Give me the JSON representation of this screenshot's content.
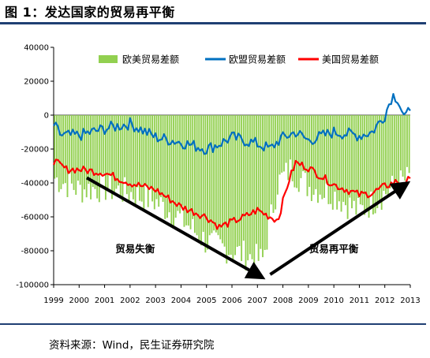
{
  "header": {
    "title": "图 1：发达国家的贸易再平衡"
  },
  "footer": {
    "source": "资料来源：Wind，民生证券研究院"
  },
  "chart_data": {
    "type": "bar+line",
    "title": "",
    "xlabel": "",
    "ylabel": "",
    "ylim": [
      -100000,
      40000
    ],
    "yticks": [
      40000,
      20000,
      0,
      -20000,
      -40000,
      -60000,
      -80000,
      -100000
    ],
    "xticks": [
      "1999",
      "2000",
      "2001",
      "2002",
      "2003",
      "2004",
      "2005",
      "2006",
      "2007",
      "2008",
      "2009",
      "2010",
      "2011",
      "2012",
      "2013"
    ],
    "xrange": [
      1999.0,
      2013.0
    ],
    "legend_position": "top",
    "series": [
      {
        "name": "欧美贸易差额",
        "type": "bar",
        "color": "#92d050",
        "anchors": [
          [
            1999.0,
            -37000
          ],
          [
            2000.0,
            -44000
          ],
          [
            2001.0,
            -43000
          ],
          [
            2002.0,
            -46000
          ],
          [
            2003.0,
            -51000
          ],
          [
            2004.0,
            -61000
          ],
          [
            2005.0,
            -75000
          ],
          [
            2006.0,
            -80000
          ],
          [
            2006.8,
            -84000
          ],
          [
            2007.2,
            -86000
          ],
          [
            2007.8,
            -40000
          ],
          [
            2008.3,
            -32000
          ],
          [
            2009.0,
            -42000
          ],
          [
            2010.0,
            -47000
          ],
          [
            2011.0,
            -57000
          ],
          [
            2012.0,
            -46000
          ],
          [
            2012.6,
            -40000
          ],
          [
            2013.0,
            -37000
          ]
        ]
      },
      {
        "name": "欧盟贸易差额",
        "type": "line",
        "color": "#0070c0",
        "anchors": [
          [
            1999.0,
            -6000
          ],
          [
            1999.3,
            -12000
          ],
          [
            2000.0,
            -12000
          ],
          [
            2001.0,
            -8000
          ],
          [
            2002.0,
            -5000
          ],
          [
            2003.0,
            -13000
          ],
          [
            2004.0,
            -16000
          ],
          [
            2005.0,
            -20000
          ],
          [
            2005.5,
            -17000
          ],
          [
            2006.0,
            -13000
          ],
          [
            2007.0,
            -17000
          ],
          [
            2007.5,
            -20000
          ],
          [
            2007.9,
            -14000
          ],
          [
            2008.5,
            -10000
          ],
          [
            2009.0,
            -15000
          ],
          [
            2010.0,
            -10000
          ],
          [
            2011.0,
            -12000
          ],
          [
            2011.5,
            -10000
          ],
          [
            2012.0,
            0
          ],
          [
            2012.3,
            12000
          ],
          [
            2012.5,
            10000
          ],
          [
            2012.8,
            -3000
          ],
          [
            2013.0,
            5000
          ]
        ]
      },
      {
        "name": "美国贸易差额",
        "type": "line",
        "color": "#ff0000",
        "anchors": [
          [
            1999.0,
            -27000
          ],
          [
            1999.5,
            -32000
          ],
          [
            2000.0,
            -32000
          ],
          [
            2001.0,
            -34000
          ],
          [
            2002.0,
            -40000
          ],
          [
            2003.0,
            -44000
          ],
          [
            2004.0,
            -54000
          ],
          [
            2005.0,
            -60000
          ],
          [
            2005.5,
            -66000
          ],
          [
            2006.0,
            -63000
          ],
          [
            2006.5,
            -60000
          ],
          [
            2007.0,
            -56000
          ],
          [
            2007.5,
            -60000
          ],
          [
            2007.8,
            -62000
          ],
          [
            2008.2,
            -40000
          ],
          [
            2008.5,
            -28000
          ],
          [
            2009.0,
            -31000
          ],
          [
            2009.5,
            -36000
          ],
          [
            2010.0,
            -41000
          ],
          [
            2011.0,
            -47000
          ],
          [
            2011.5,
            -46000
          ],
          [
            2012.0,
            -42000
          ],
          [
            2012.5,
            -39000
          ],
          [
            2012.8,
            -43000
          ],
          [
            2013.0,
            -35000
          ]
        ]
      }
    ],
    "annotations": [
      {
        "text": "贸易失衡",
        "x": 2002.2,
        "y": -81000
      },
      {
        "text": "贸易再平衡",
        "x": 2010.0,
        "y": -81000
      }
    ],
    "arrows": [
      {
        "from": [
          2000.3,
          -37000
        ],
        "to": [
          2007.1,
          -95000
        ]
      },
      {
        "from": [
          2007.5,
          -94000
        ],
        "to": [
          2012.8,
          -41000
        ]
      }
    ]
  }
}
